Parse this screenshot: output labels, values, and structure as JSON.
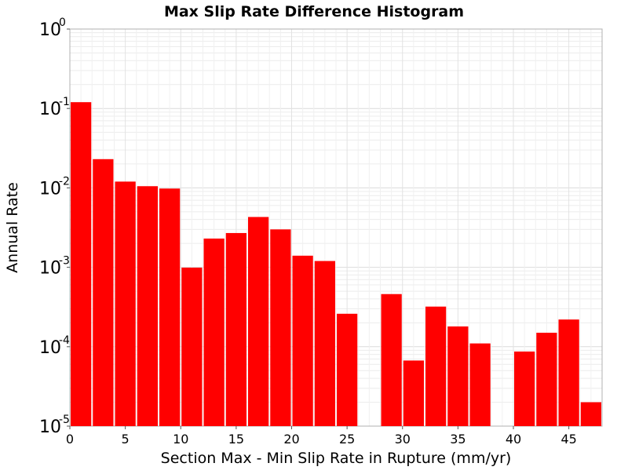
{
  "chart_data": {
    "type": "bar",
    "title": "Max Slip Rate Difference Histogram",
    "xlabel": "Section Max - Min Slip Rate in Rupture (mm/yr)",
    "ylabel": "Annual Rate",
    "y_scale": "log",
    "xlim": [
      0,
      48
    ],
    "ylim": [
      1e-05,
      1
    ],
    "bin_width": 2,
    "bar_color": "#ff0000",
    "grid": true,
    "x_ticks": [
      0,
      5,
      10,
      15,
      20,
      25,
      30,
      35,
      40,
      45
    ],
    "x_tick_labels": [
      "0",
      "5",
      "10",
      "15",
      "20",
      "25",
      "30",
      "35",
      "40",
      "45"
    ],
    "y_ticks": [
      {
        "value": 1,
        "base": "10",
        "exp": "0"
      },
      {
        "value": 0.1,
        "base": "10",
        "exp": "-1"
      },
      {
        "value": 0.01,
        "base": "10",
        "exp": "-2"
      },
      {
        "value": 0.001,
        "base": "10",
        "exp": "-3"
      },
      {
        "value": 0.0001,
        "base": "10",
        "exp": "-4"
      },
      {
        "value": 1e-05,
        "base": "10",
        "exp": "-5"
      }
    ],
    "bins": [
      {
        "x_start": 0,
        "value": 0.12
      },
      {
        "x_start": 2,
        "value": 0.023
      },
      {
        "x_start": 4,
        "value": 0.012
      },
      {
        "x_start": 6,
        "value": 0.0105
      },
      {
        "x_start": 8,
        "value": 0.0098
      },
      {
        "x_start": 10,
        "value": 0.00099
      },
      {
        "x_start": 12,
        "value": 0.0023
      },
      {
        "x_start": 14,
        "value": 0.0027
      },
      {
        "x_start": 16,
        "value": 0.0043
      },
      {
        "x_start": 18,
        "value": 0.003
      },
      {
        "x_start": 20,
        "value": 0.0014
      },
      {
        "x_start": 22,
        "value": 0.0012
      },
      {
        "x_start": 24,
        "value": 0.00026
      },
      {
        "x_start": 28,
        "value": 0.00046
      },
      {
        "x_start": 30,
        "value": 6.7e-05
      },
      {
        "x_start": 32,
        "value": 0.00032
      },
      {
        "x_start": 34,
        "value": 0.00018
      },
      {
        "x_start": 36,
        "value": 0.00011
      },
      {
        "x_start": 40,
        "value": 8.7e-05
      },
      {
        "x_start": 42,
        "value": 0.00015
      },
      {
        "x_start": 44,
        "value": 0.00022
      },
      {
        "x_start": 46,
        "value": 2e-05
      }
    ]
  }
}
